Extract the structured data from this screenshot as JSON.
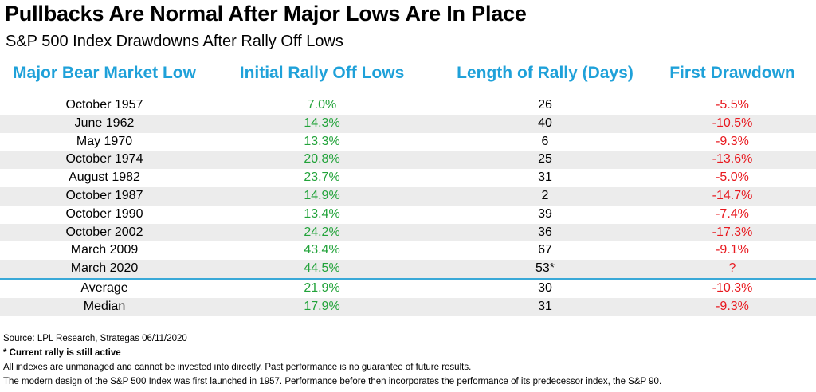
{
  "title": "Pullbacks Are Normal After Major Lows Are In Place",
  "subtitle": "S&P 500 Index Drawdowns After Rally Off Lows",
  "colors": {
    "header": "#1fa1d9",
    "positive": "#22a33a",
    "negative": "#e8191f",
    "divider": "#3aa9d8",
    "row_shade": "#ececec"
  },
  "chart_data": {
    "type": "table",
    "columns": [
      "Major Bear Market Low",
      "Initial Rally Off Lows",
      "Length of Rally (Days)",
      "First Drawdown"
    ],
    "rows": [
      [
        "October 1957",
        "7.0%",
        "26",
        "-5.5%"
      ],
      [
        "June 1962",
        "14.3%",
        "40",
        "-10.5%"
      ],
      [
        "May 1970",
        "13.3%",
        "6",
        "-9.3%"
      ],
      [
        "October 1974",
        "20.8%",
        "25",
        "-13.6%"
      ],
      [
        "August 1982",
        "23.7%",
        "31",
        "-5.0%"
      ],
      [
        "October 1987",
        "14.9%",
        "2",
        "-14.7%"
      ],
      [
        "October 1990",
        "13.4%",
        "39",
        "-7.4%"
      ],
      [
        "October 2002",
        "24.2%",
        "36",
        "-17.3%"
      ],
      [
        "March 2009",
        "43.4%",
        "67",
        "-9.1%"
      ],
      [
        "March 2020",
        "44.5%",
        "53*",
        "?"
      ]
    ],
    "summary_rows": [
      [
        "Average",
        "21.9%",
        "30",
        "-10.3%"
      ],
      [
        "Median",
        "17.9%",
        "31",
        "-9.3%"
      ]
    ]
  },
  "footnotes": {
    "source": "Source: LPL Research, Strategas 06/11/2020",
    "asterisk": "* Current rally is still active",
    "disclaimer": "All indexes are unmanaged and cannot be invested into directly. Past performance is no guarantee of future results.",
    "history": "The modern design of the S&P 500 Index was first launched in 1957. Performance before then incorporates the performance of its predecessor index, the S&P 90."
  }
}
